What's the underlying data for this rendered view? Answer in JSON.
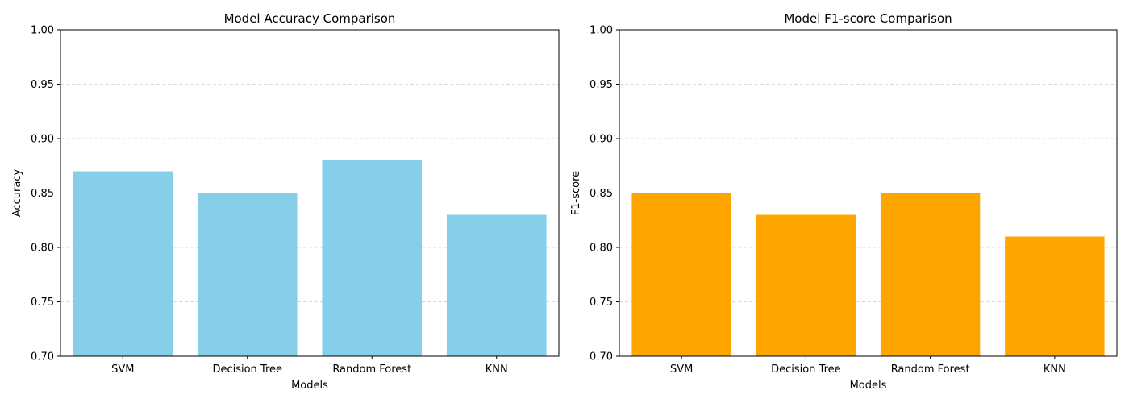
{
  "chart_data": [
    {
      "type": "bar",
      "title": "Model Accuracy Comparison",
      "xlabel": "Models",
      "ylabel": "Accuracy",
      "categories": [
        "SVM",
        "Decision Tree",
        "Random Forest",
        "KNN"
      ],
      "values": [
        0.87,
        0.85,
        0.88,
        0.83
      ],
      "ylim": [
        0.7,
        1.0
      ],
      "yticks": [
        "0.70",
        "0.75",
        "0.80",
        "0.85",
        "0.90",
        "0.95",
        "1.00"
      ],
      "color": "#87ceeb",
      "grid": "y-dashed"
    },
    {
      "type": "bar",
      "title": "Model F1-score Comparison",
      "xlabel": "Models",
      "ylabel": "F1-score",
      "categories": [
        "SVM",
        "Decision Tree",
        "Random Forest",
        "KNN"
      ],
      "values": [
        0.85,
        0.83,
        0.85,
        0.81
      ],
      "ylim": [
        0.7,
        1.0
      ],
      "yticks": [
        "0.70",
        "0.75",
        "0.80",
        "0.85",
        "0.90",
        "0.95",
        "1.00"
      ],
      "color": "#ffa500",
      "grid": "y-dashed"
    }
  ]
}
